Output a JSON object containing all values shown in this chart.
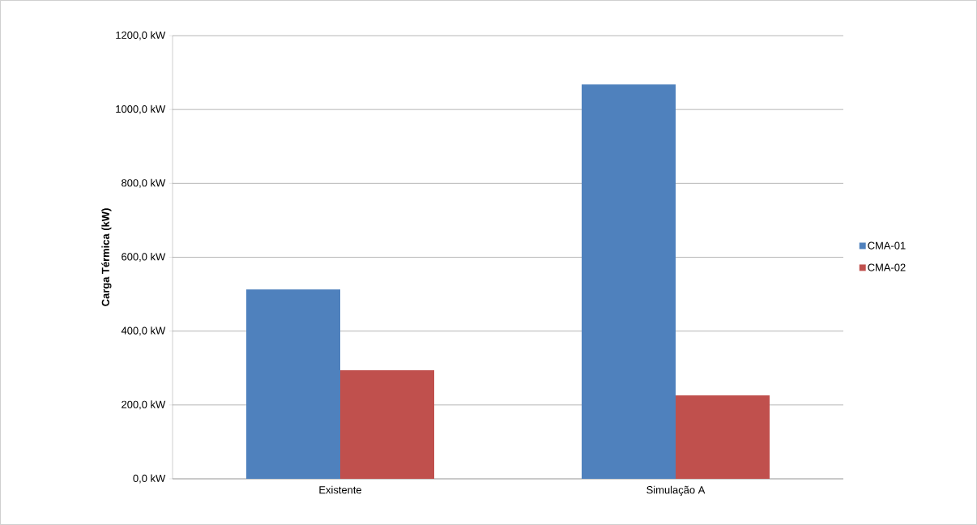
{
  "chart_data": {
    "type": "bar",
    "ylabel": "Carga Térmica (kW)",
    "categories": [
      "Existente",
      "Simulação A"
    ],
    "series": [
      {
        "name": "CMA-01",
        "color": "#4f81bd",
        "values": [
          513,
          1068
        ]
      },
      {
        "name": "CMA-02",
        "color": "#c0504d",
        "values": [
          294,
          226
        ]
      }
    ],
    "ylim": [
      0,
      1200
    ],
    "yticks": [
      {
        "value": 0,
        "label": "0,0 kW"
      },
      {
        "value": 200,
        "label": "200,0 kW"
      },
      {
        "value": 400,
        "label": "400,0 kW"
      },
      {
        "value": 600,
        "label": "600,0 kW"
      },
      {
        "value": 800,
        "label": "800,0 kW"
      },
      {
        "value": 1000,
        "label": "1000,0 kW"
      },
      {
        "value": 1200,
        "label": "1200,0 kW"
      }
    ],
    "grid": "y",
    "legend": "right"
  }
}
